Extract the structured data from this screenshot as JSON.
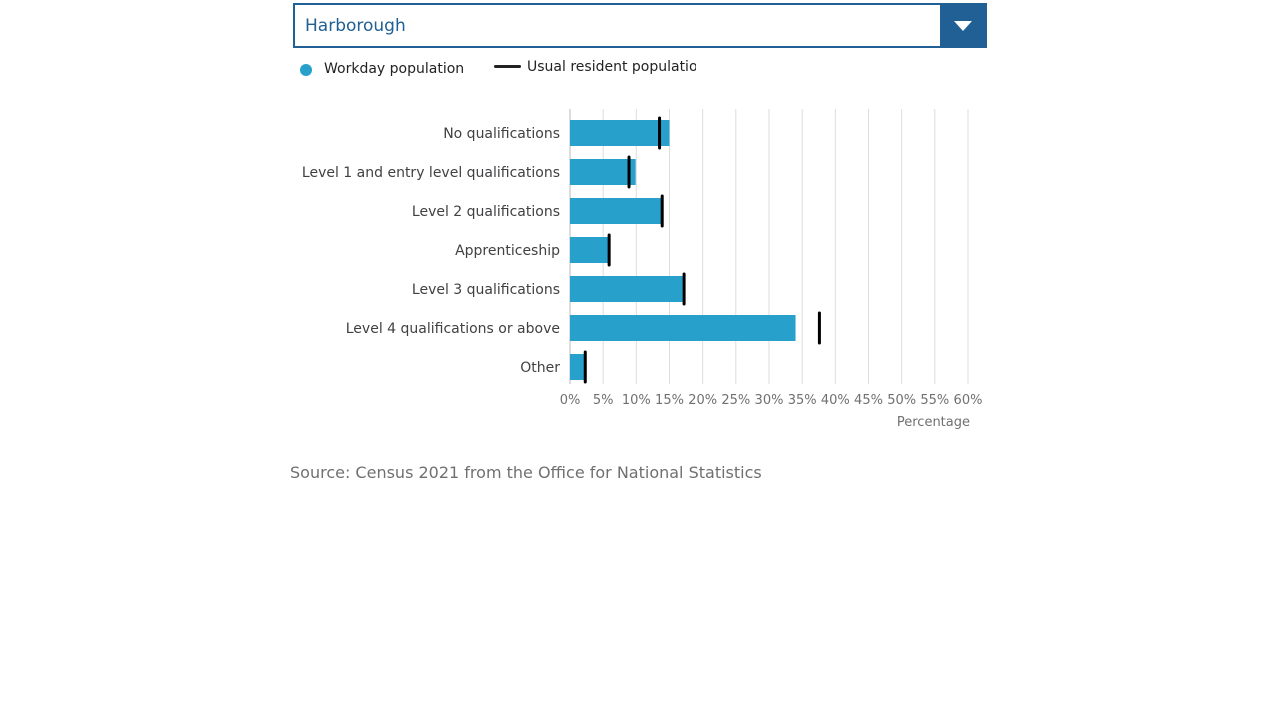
{
  "selector": {
    "value": "Harborough",
    "icon": "chevron-down-icon"
  },
  "legend": {
    "workday_label": "Workday population",
    "resident_label": "Usual resident population"
  },
  "colors": {
    "accent": "#206095",
    "workday_bar": "#27a0cc",
    "resident_marker": "#000000",
    "grid": "#dddddd",
    "source_text": "#707071"
  },
  "chart_data": {
    "type": "bar",
    "orientation": "horizontal",
    "categories": [
      "No qualifications",
      "Level 1 and entry level qualifications",
      "Level 2 qualifications",
      "Apprenticeship",
      "Level 3 qualifications",
      "Level 4 qualifications or above",
      "Other"
    ],
    "series": [
      {
        "name": "Workday population",
        "values": [
          15.0,
          9.9,
          13.9,
          5.8,
          17.0,
          34.0,
          2.5
        ],
        "style": "bar"
      },
      {
        "name": "Usual resident population",
        "values": [
          13.5,
          8.9,
          13.9,
          5.9,
          17.2,
          37.6,
          2.3
        ],
        "style": "marker"
      }
    ],
    "xlabel": "Percentage",
    "ylabel": "",
    "xlim": [
      0,
      60
    ],
    "xticks": [
      "0%",
      "5%",
      "10%",
      "15%",
      "20%",
      "25%",
      "30%",
      "35%",
      "40%",
      "45%",
      "50%",
      "55%",
      "60%"
    ],
    "grid": true,
    "legend_position": "top-left"
  },
  "source": "Source: Census 2021 from the Office for National Statistics"
}
